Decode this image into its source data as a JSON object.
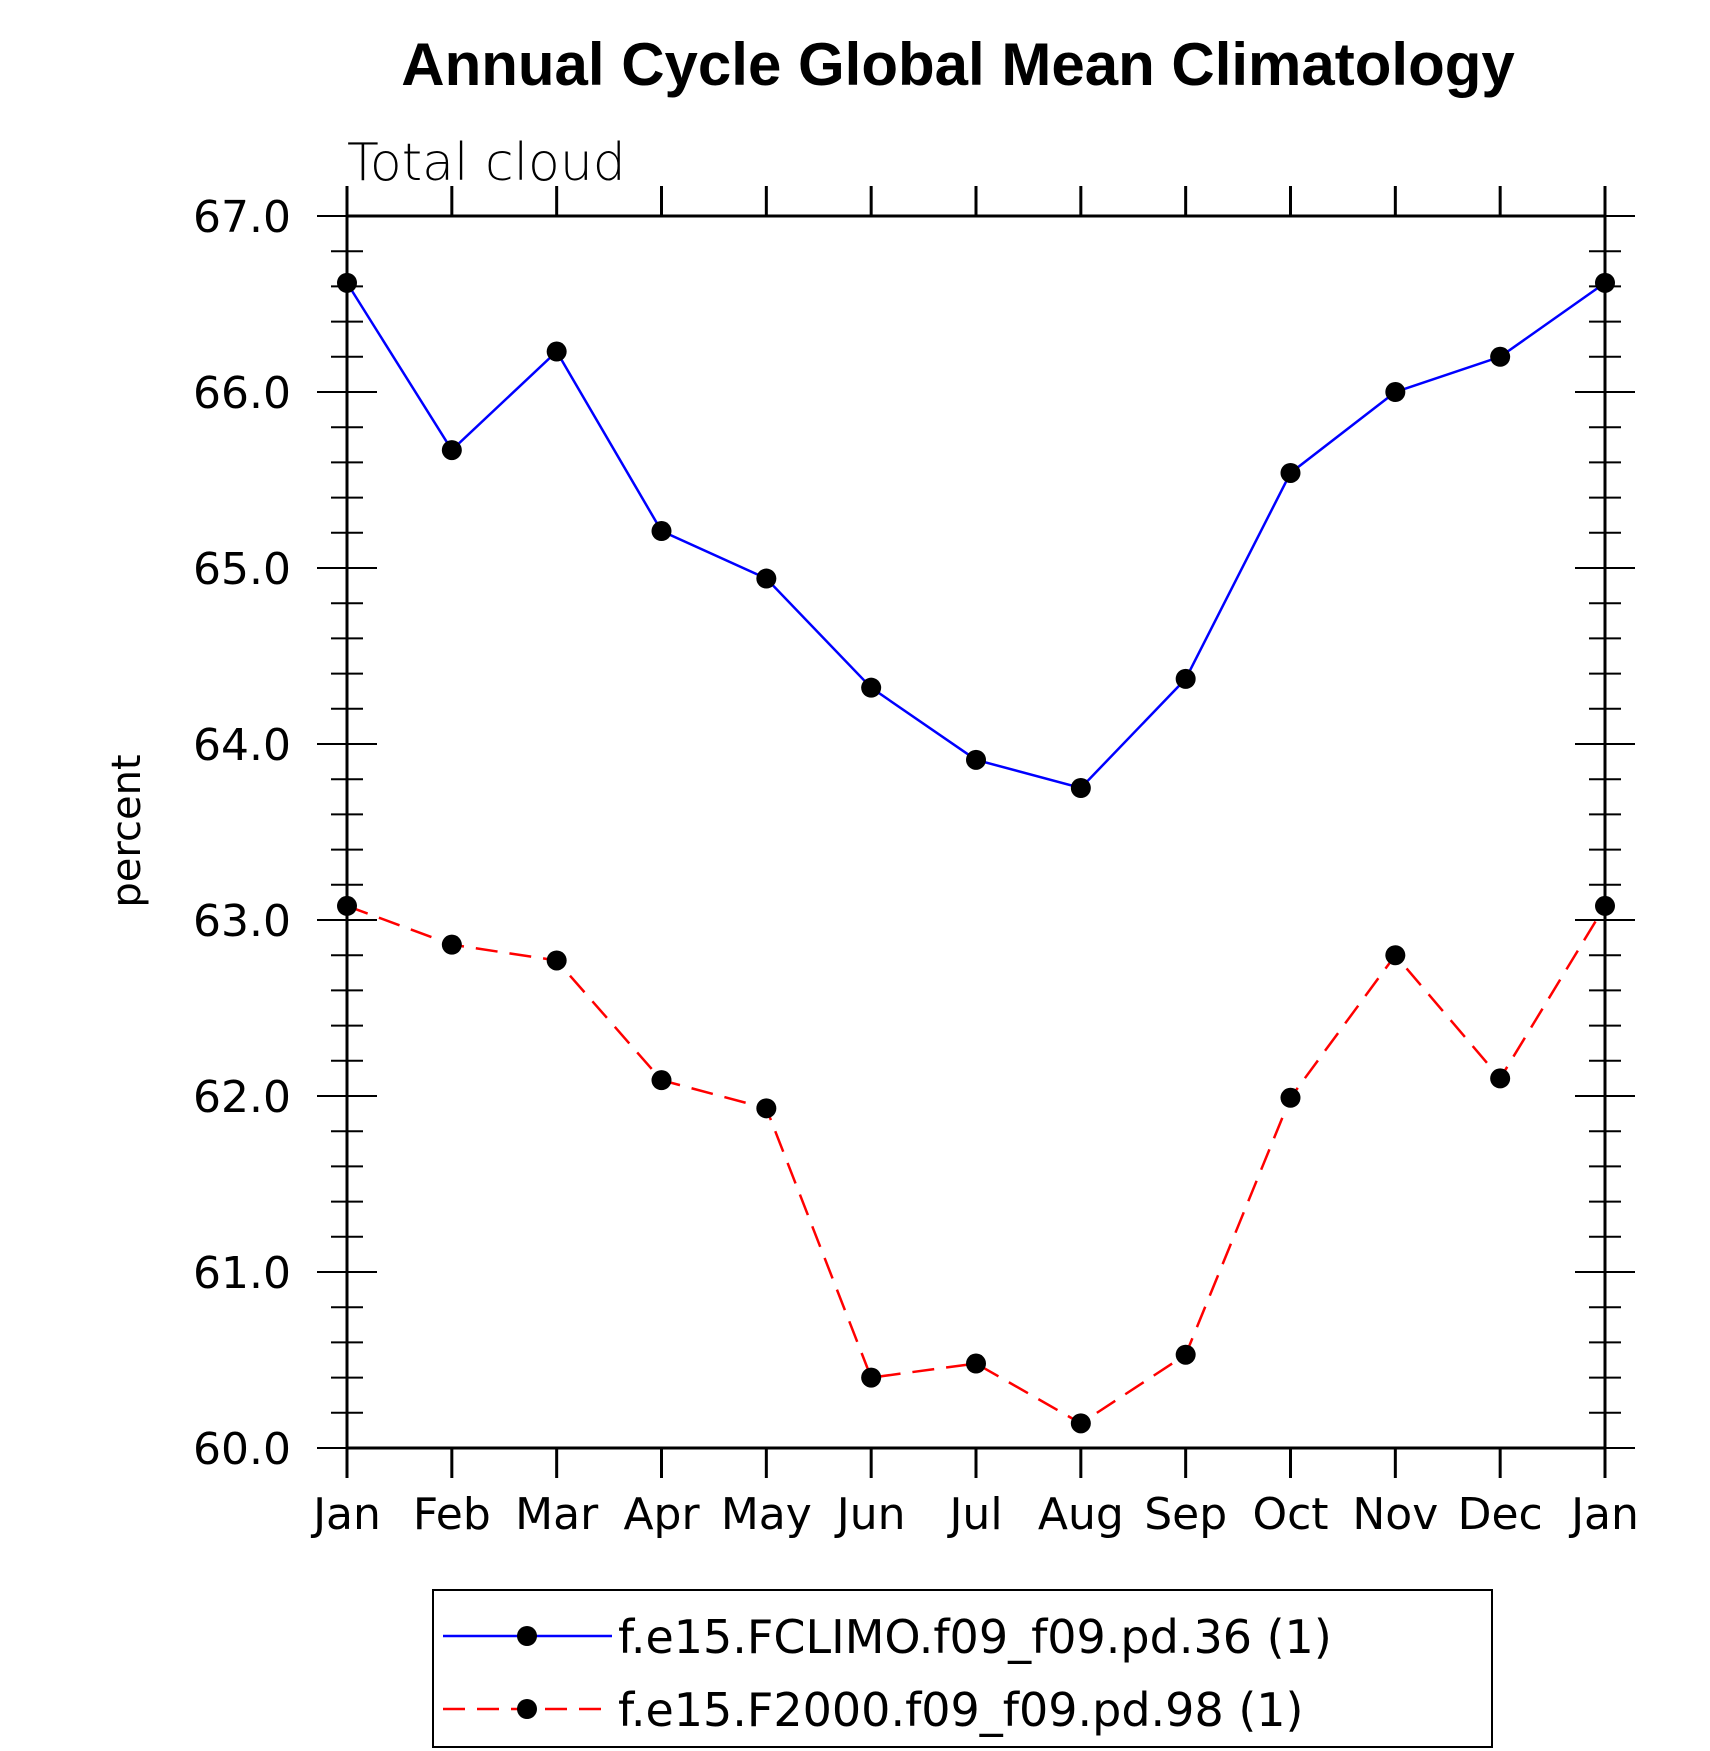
{
  "chart_data": {
    "type": "line",
    "title": "Annual Cycle Global Mean Climatology",
    "subtitle": "Total cloud",
    "xlabel": "",
    "ylabel": "percent",
    "categories": [
      "Jan",
      "Feb",
      "Mar",
      "Apr",
      "May",
      "Jun",
      "Jul",
      "Aug",
      "Sep",
      "Oct",
      "Nov",
      "Dec",
      "Jan"
    ],
    "ylim": [
      60.0,
      67.0
    ],
    "yticks": [
      "60.0",
      "61.0",
      "62.0",
      "63.0",
      "64.0",
      "65.0",
      "66.0",
      "67.0"
    ],
    "grid": false,
    "legend_position": "bottom",
    "series": [
      {
        "name": "f.e15.FCLIMO.f09_f09.pd.36 (1)",
        "color": "#0000ff",
        "dash": "solid",
        "marker": "dot",
        "values": [
          66.62,
          65.67,
          66.23,
          65.21,
          64.94,
          64.32,
          63.91,
          63.75,
          64.37,
          65.54,
          66.0,
          66.2,
          66.62
        ]
      },
      {
        "name": "f.e15.F2000.f09_f09.pd.98 (1)",
        "color": "#ff0000",
        "dash": "dashed",
        "marker": "dot",
        "values": [
          63.08,
          62.86,
          62.77,
          62.09,
          61.93,
          60.4,
          60.48,
          60.14,
          60.53,
          61.99,
          62.8,
          62.1,
          63.08
        ]
      }
    ]
  }
}
